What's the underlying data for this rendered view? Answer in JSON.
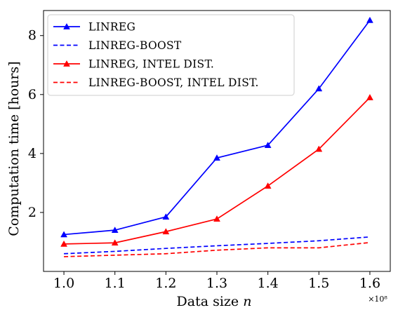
{
  "chart_data": {
    "type": "line",
    "x": [
      1.0,
      1.1,
      1.2,
      1.3,
      1.4,
      1.5,
      1.6
    ],
    "x_tick_labels": [
      "1.0",
      "1.1",
      "1.2",
      "1.3",
      "1.4",
      "1.5",
      "1.6"
    ],
    "y_ticks": [
      2,
      4,
      6,
      8
    ],
    "y_tick_labels": [
      "2",
      "4",
      "6",
      "8"
    ],
    "x_scale_label": "×10⁸",
    "xlabel": "Data size n",
    "xlabel_main": "Data size ",
    "xlabel_var": "n",
    "ylabel": "Computation time [hours]",
    "xlim": [
      0.96,
      1.64
    ],
    "ylim": [
      0.0,
      8.85
    ],
    "grid": false,
    "legend_position": "top-left",
    "series": [
      {
        "name": "LINREG",
        "color": "#0000ff",
        "style": "solid",
        "marker": "triangle",
        "values": [
          1.25,
          1.4,
          1.85,
          3.85,
          4.28,
          6.2,
          8.52
        ]
      },
      {
        "name": "LINREG-BOOST",
        "color": "#0000ff",
        "style": "dashed",
        "marker": "none",
        "values": [
          0.6,
          0.68,
          0.78,
          0.87,
          0.95,
          1.04,
          1.17
        ]
      },
      {
        "name": "LINREG, INTEL DIST.",
        "color": "#ff0000",
        "style": "solid",
        "marker": "triangle",
        "values": [
          0.93,
          0.97,
          1.35,
          1.78,
          2.9,
          4.15,
          5.9
        ]
      },
      {
        "name": "LINREG-BOOST, INTEL DIST.",
        "color": "#ff0000",
        "style": "dashed",
        "marker": "none",
        "values": [
          0.5,
          0.55,
          0.6,
          0.72,
          0.8,
          0.8,
          0.98
        ]
      }
    ]
  }
}
